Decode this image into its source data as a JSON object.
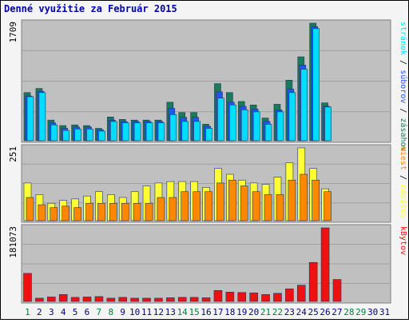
{
  "chart_data": {
    "type": "bar",
    "title": "Denné využitie za Február 2015",
    "days": [
      "1",
      "2",
      "3",
      "4",
      "5",
      "6",
      "7",
      "8",
      "9",
      "10",
      "11",
      "12",
      "13",
      "14",
      "15",
      "16",
      "17",
      "18",
      "19",
      "20",
      "21",
      "22",
      "23",
      "24",
      "25",
      "26",
      "27",
      "28",
      "29",
      "30",
      "31"
    ],
    "weekend_days": [
      "1",
      "7",
      "8",
      "14",
      "15",
      "21",
      "22",
      "28",
      "29"
    ],
    "panels": [
      {
        "id": "hits",
        "ymax_label": "1709",
        "ymax": 1709,
        "series": [
          {
            "name": "zásahov",
            "color": "#1a7a5a",
            "values": [
              700,
              760,
              300,
              220,
              230,
              220,
              180,
              345,
              310,
              300,
              300,
              300,
              560,
              410,
              410,
              240,
              830,
              700,
              570,
              520,
              330,
              530,
              880,
              1220,
              1709,
              550,
              0,
              0,
              0,
              0,
              0
            ]
          },
          {
            "name": "súborov",
            "color": "#2255ee",
            "values": [
              650,
              720,
              260,
              180,
              200,
              200,
              160,
              300,
              280,
              280,
              280,
              280,
              470,
              340,
              340,
              210,
              710,
              560,
              500,
              460,
              280,
              450,
              750,
              1100,
              1660,
              500,
              0,
              0,
              0,
              0,
              0
            ]
          },
          {
            "name": "stránok",
            "color": "#00ddff",
            "values": [
              640,
              700,
              230,
              150,
              170,
              170,
              140,
              280,
              260,
              260,
              260,
              260,
              380,
              280,
              280,
              180,
              620,
              520,
              450,
              420,
              240,
              420,
              700,
              1040,
              1630,
              490,
              0,
              0,
              0,
              0,
              0
            ]
          }
        ],
        "right_labels": [
          "zásahov",
          "súborov",
          "stránok"
        ]
      },
      {
        "id": "visits",
        "ymax_label": "251",
        "ymax": 251,
        "series": [
          {
            "name": "návštev",
            "color": "#ffff33",
            "values": [
              130,
              90,
              60,
              70,
              75,
              85,
              100,
              90,
              80,
              100,
              120,
              130,
              135,
              135,
              135,
              115,
              180,
              160,
              140,
              130,
              125,
              150,
              200,
              251,
              180,
              110,
              0,
              0,
              0,
              0,
              0
            ]
          },
          {
            "name": "miest",
            "color": "#ff8800",
            "values": [
              80,
              55,
              45,
              50,
              45,
              60,
              60,
              60,
              60,
              60,
              60,
              80,
              80,
              100,
              100,
              100,
              130,
              140,
              120,
              100,
              90,
              90,
              140,
              160,
              140,
              100,
              0,
              0,
              0,
              0,
              0
            ]
          }
        ],
        "right_labels": [
          "návštev",
          "miest"
        ]
      },
      {
        "id": "kbytes",
        "ymax_label": "181073",
        "ymax": 181073,
        "series": [
          {
            "name": "kBytov",
            "color": "#ee1111",
            "values": [
              69000,
              8000,
              11000,
              17000,
              10000,
              11000,
              12000,
              8000,
              10000,
              8000,
              8000,
              8000,
              9000,
              10000,
              10000,
              9000,
              27000,
              23000,
              22000,
              21000,
              17000,
              20000,
              31000,
              40000,
              96000,
              181073,
              54000,
              0,
              0,
              0,
              0
            ]
          }
        ],
        "right_labels": [
          "kBytov"
        ]
      }
    ],
    "grid": true,
    "legend": "right"
  },
  "colors": {
    "title": "#0000b0",
    "plot_bg": "#c0c0c0",
    "frame_bg": "#f4f4f4",
    "weekday_label": "#000080",
    "weekend_label": "#008040",
    "separator": "#000000"
  }
}
